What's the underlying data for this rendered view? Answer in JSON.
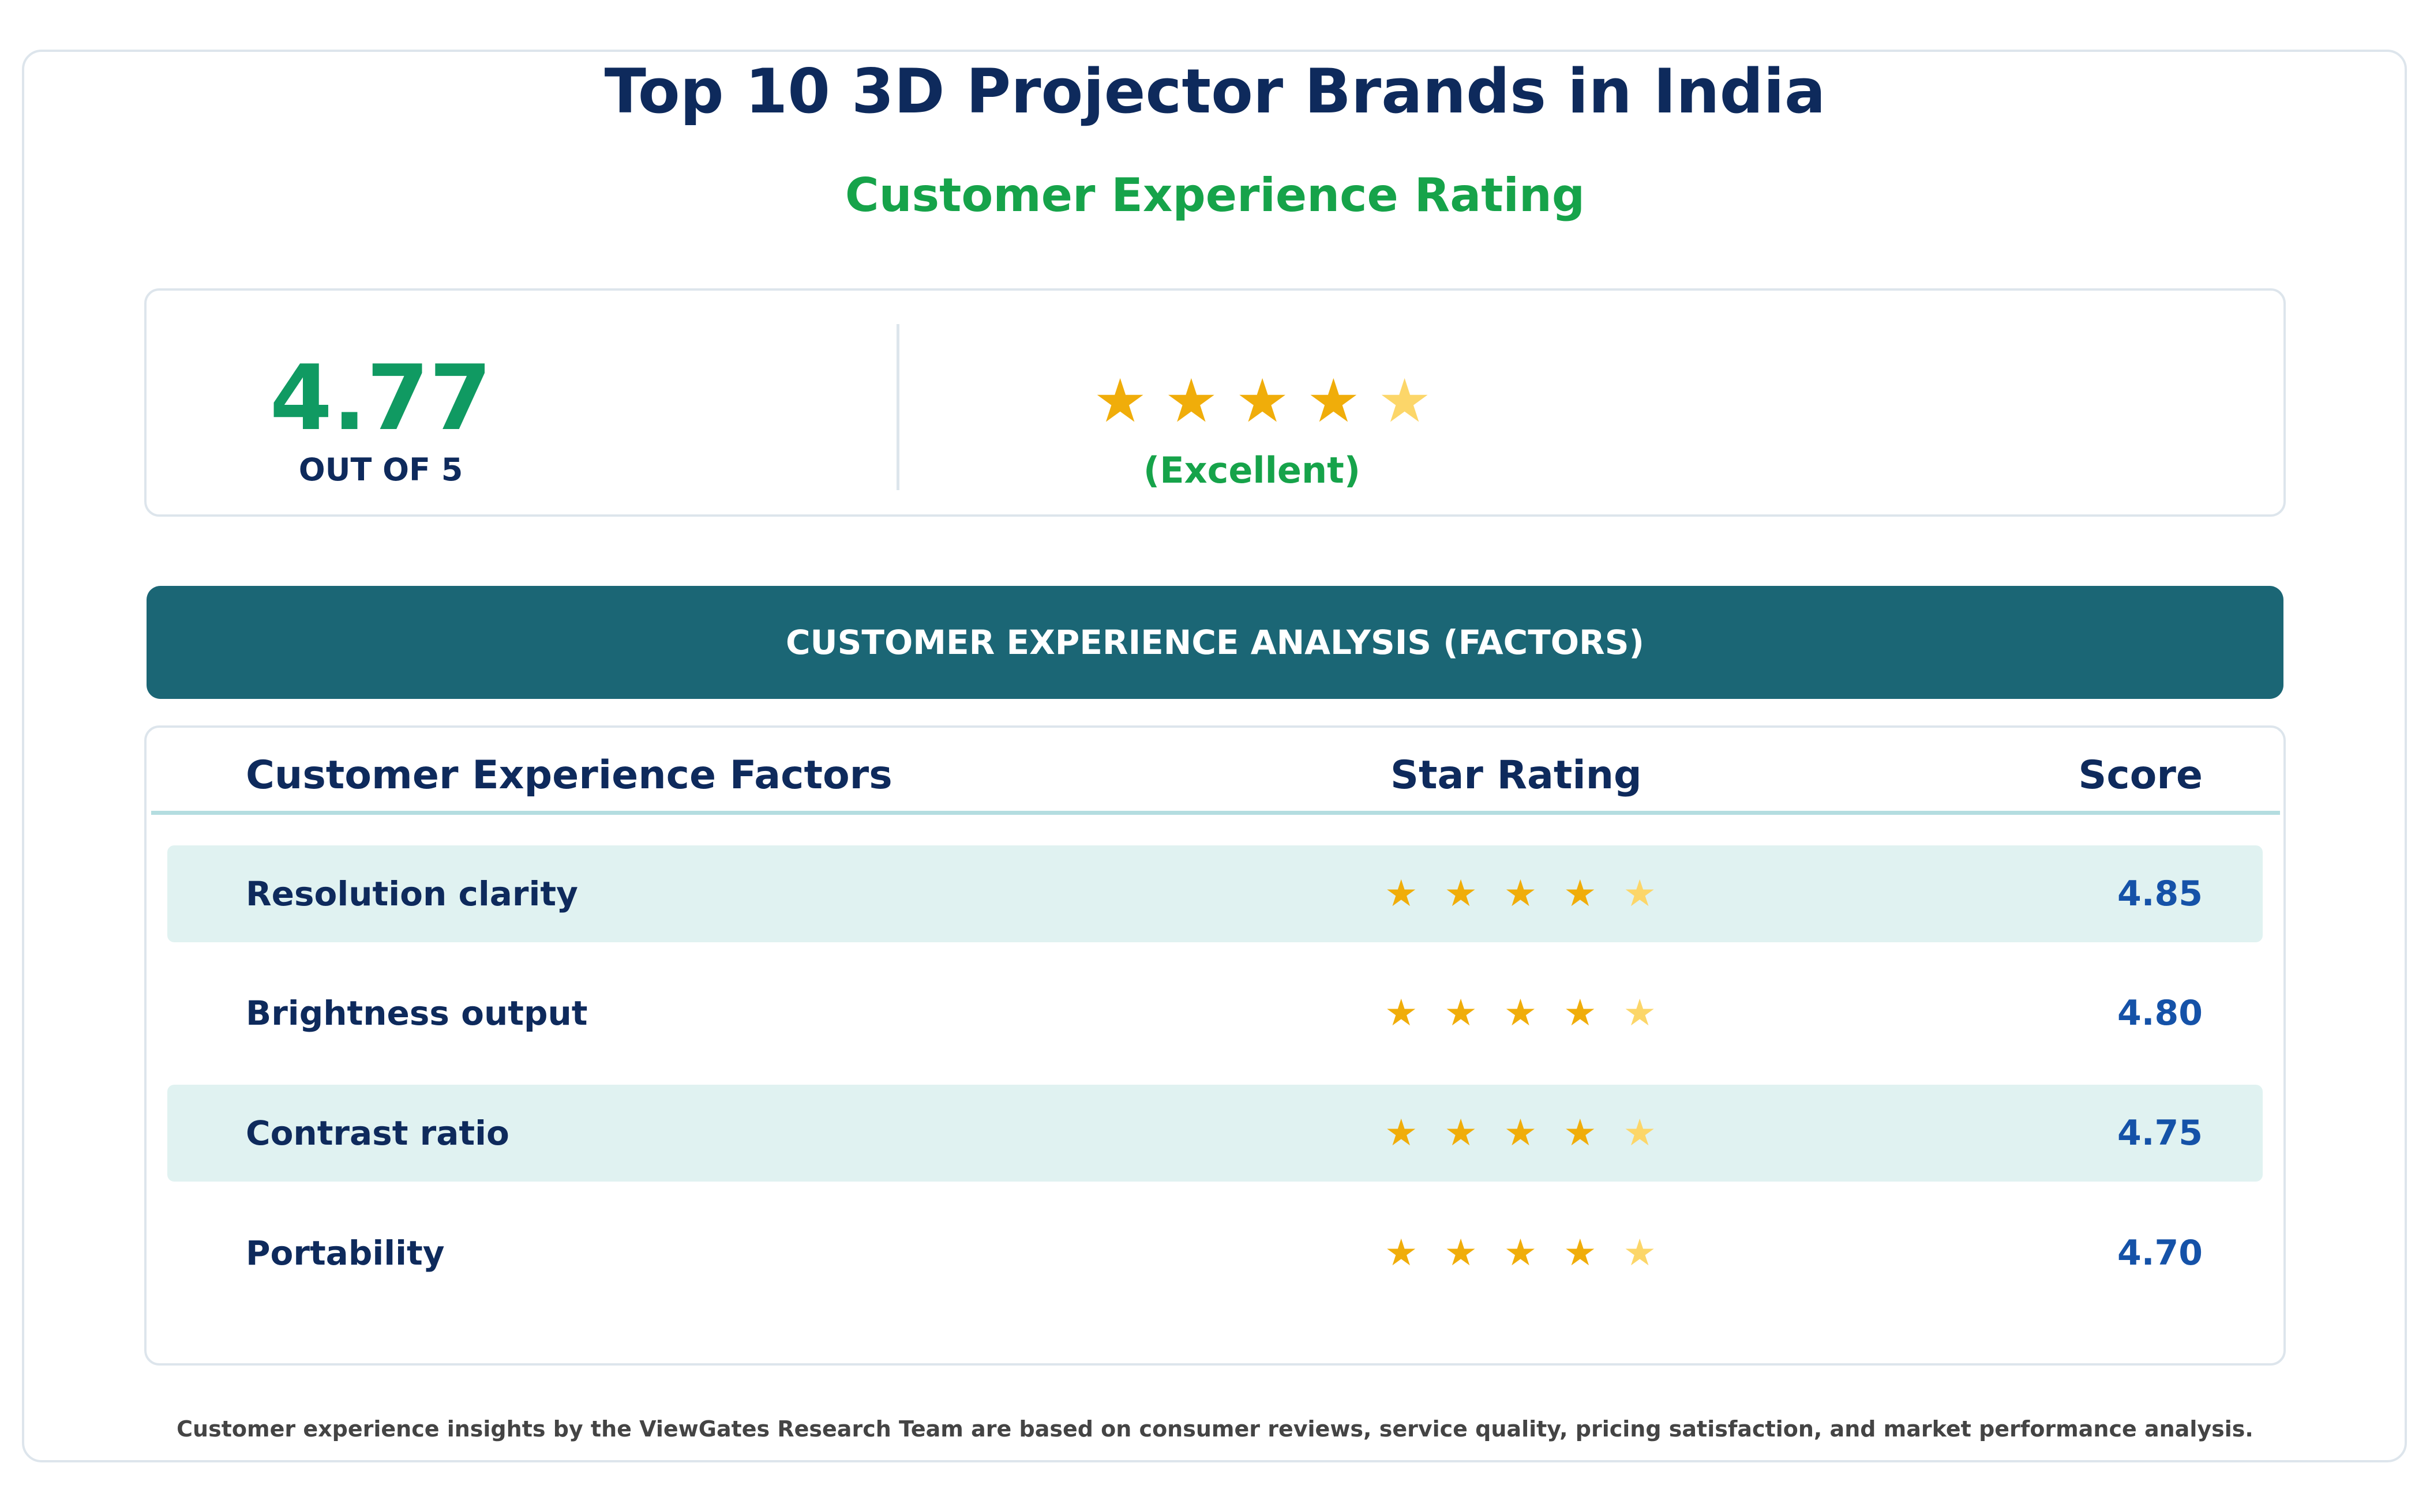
{
  "header": {
    "title": "Top 10 3D Projector Brands in India",
    "subtitle": "Customer Experience Rating"
  },
  "summary": {
    "score": "4.77",
    "out_of": "OUT OF 5",
    "stars": {
      "full": 4,
      "faded": 1,
      "star_glyph": "★",
      "icon": "star-icon"
    },
    "verdict": "(Excellent)"
  },
  "banner": {
    "label": "CUSTOMER EXPERIENCE ANALYSIS (FACTORS)"
  },
  "table": {
    "columns": [
      "Customer Experience Factors",
      "Star Rating",
      "Score"
    ],
    "rows": [
      {
        "factor": "Resolution clarity",
        "score": "4.85",
        "full_stars": 4,
        "faded_stars": 1,
        "highlighted": true
      },
      {
        "factor": "Brightness output",
        "score": "4.80",
        "full_stars": 4,
        "faded_stars": 1,
        "highlighted": false
      },
      {
        "factor": "Contrast ratio",
        "score": "4.75",
        "full_stars": 4,
        "faded_stars": 1,
        "highlighted": true
      },
      {
        "factor": "Portability",
        "score": "4.70",
        "full_stars": 4,
        "faded_stars": 1,
        "highlighted": false
      }
    ]
  },
  "footnote": "Customer experience insights by the ViewGates Research Team are based on consumer reviews, service quality, pricing satisfaction, and market performance analysis.",
  "colors": {
    "title": "#0e2a5c",
    "accent_green": "#16a34a",
    "score_green": "#109a62",
    "banner": "#1b6675",
    "row_highlight": "#e0f2f1",
    "star_full": "#f0ad0a",
    "star_faded": "#fcd669",
    "score_blue": "#1552a8"
  }
}
